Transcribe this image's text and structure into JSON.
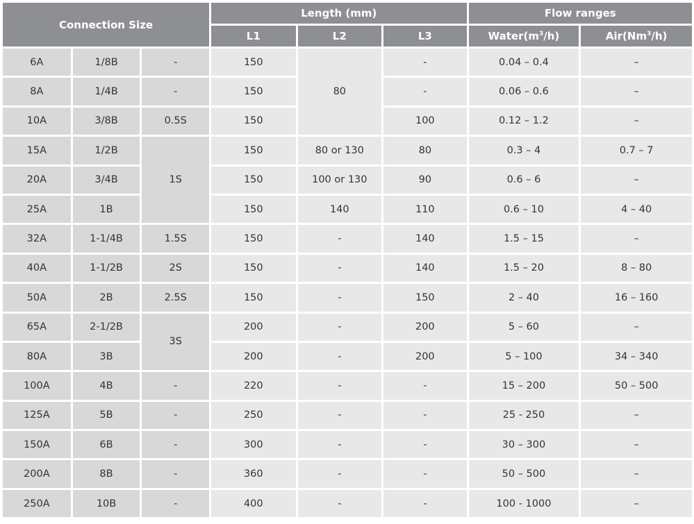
{
  "header": {
    "connection_size": "Connection Size",
    "length": "Length (mm)",
    "flow": "Flow ranges",
    "l1": "L1",
    "l2": "L2",
    "l3": "L3",
    "water_pre": "Water(m",
    "water_sup": "3",
    "water_post": "/h)",
    "air_pre": "Air(Nm",
    "air_sup": "3",
    "air_post": "/h)"
  },
  "colors": {
    "header_bg": "#8e8f93",
    "connection_bg": "#d8d8d8",
    "cell_bg": "#e8e8e8"
  },
  "rows": [
    [
      "6A",
      "1/8B",
      "-",
      "150",
      "80",
      "-",
      "0.04 – 0.4",
      "–"
    ],
    [
      "8A",
      "1/4B",
      "-",
      "150",
      null,
      "-",
      "0.06 – 0.6",
      "–"
    ],
    [
      "10A",
      "3/8B",
      "0.5S",
      "150",
      null,
      "100",
      "0.12 – 1.2",
      "–"
    ],
    [
      "15A",
      "1/2B",
      "1S",
      "150",
      "80 or 130",
      "80",
      "0.3 – 4",
      "0.7 – 7"
    ],
    [
      "20A",
      "3/4B",
      null,
      "150",
      "100 or 130",
      "90",
      "0.6 – 6",
      "–"
    ],
    [
      "25A",
      "1B",
      null,
      "150",
      "140",
      "110",
      "0.6 – 10",
      "4 – 40"
    ],
    [
      "32A",
      "1-1/4B",
      "1.5S",
      "150",
      "-",
      "140",
      "1.5 – 15",
      "–"
    ],
    [
      "40A",
      "1-1/2B",
      "2S",
      "150",
      "-",
      "140",
      "1.5 – 20",
      "8 – 80"
    ],
    [
      "50A",
      "2B",
      "2.5S",
      "150",
      "-",
      "150",
      "2 – 40",
      "16 – 160"
    ],
    [
      "65A",
      "2-1/2B",
      "3S",
      "200",
      "-",
      "200",
      "5 – 60",
      "–"
    ],
    [
      "80A",
      "3B",
      null,
      "200",
      "-",
      "200",
      "5 – 100",
      "34 – 340"
    ],
    [
      "100A",
      "4B",
      "-",
      "220",
      "-",
      "-",
      "15 – 200",
      "50 – 500"
    ],
    [
      "125A",
      "5B",
      "-",
      "250",
      "-",
      "-",
      "25 - 250",
      "–"
    ],
    [
      "150A",
      "6B",
      "-",
      "300",
      "-",
      "-",
      "30 – 300",
      "–"
    ],
    [
      "200A",
      "8B",
      "-",
      "360",
      "-",
      "-",
      "50 – 500",
      "–"
    ],
    [
      "250A",
      "10B",
      "-",
      "400",
      "-",
      "-",
      "100 - 1000",
      "–"
    ]
  ]
}
